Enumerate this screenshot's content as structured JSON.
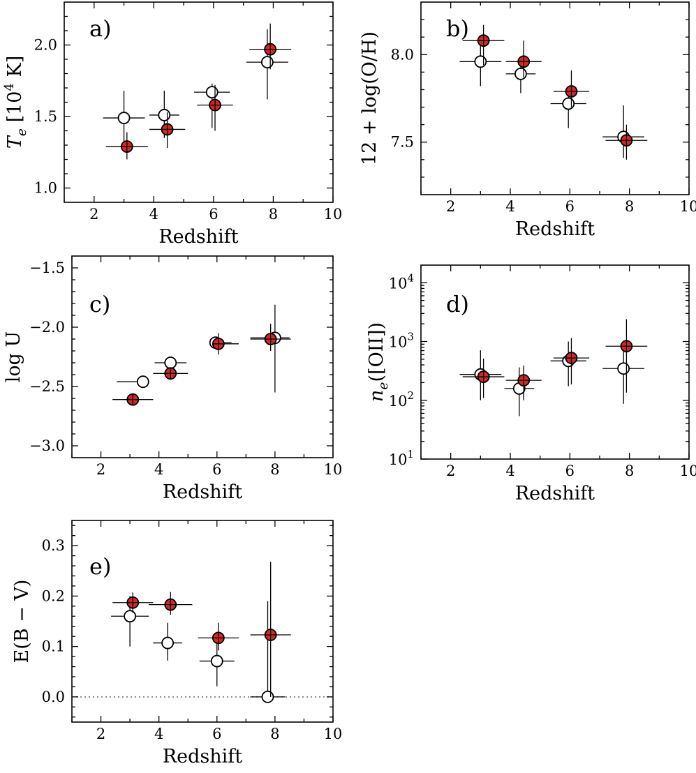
{
  "colors": {
    "filled": "#d62728",
    "open": "#ffffff",
    "axis": "#000000",
    "zero_line": "#888888"
  },
  "chart_data": [
    {
      "type": "scatter",
      "panel_label": "a)",
      "xlabel": "Redshift",
      "ylabel_parts": {
        "sym": "T",
        "sub": "e",
        "pre": " [10",
        "sup": "4",
        "post": " K]"
      },
      "xlim": [
        1,
        10
      ],
      "ylim": [
        0.9,
        2.3
      ],
      "xticks": [
        2,
        4,
        6,
        8,
        10
      ],
      "yticks": [
        1.0,
        1.5,
        2.0
      ],
      "ytick_labels": [
        "1.0",
        "1.5",
        "2.0"
      ],
      "series": [
        {
          "style": "open",
          "points": [
            {
              "x": 3.0,
              "y": 1.49,
              "xerr": [
                0.7,
                0.7
              ],
              "yerr": [
                0.19,
                0.19
              ]
            },
            {
              "x": 4.35,
              "y": 1.51,
              "xerr": [
                0.5,
                0.5
              ],
              "yerr": [
                0.16,
                0.17
              ]
            },
            {
              "x": 5.95,
              "y": 1.67,
              "xerr": [
                0.6,
                0.6
              ],
              "yerr": [
                0.25,
                0.06
              ]
            },
            {
              "x": 7.8,
              "y": 1.88,
              "xerr": [
                0.7,
                0.7
              ],
              "yerr": [
                0.26,
                0.23
              ]
            }
          ]
        },
        {
          "style": "filled",
          "points": [
            {
              "x": 3.1,
              "y": 1.29,
              "xerr": [
                0.7,
                0.7
              ],
              "yerr": [
                0.09,
                0.1
              ]
            },
            {
              "x": 4.45,
              "y": 1.41,
              "xerr": [
                0.6,
                0.6
              ],
              "yerr": [
                0.13,
                0.12
              ]
            },
            {
              "x": 6.05,
              "y": 1.58,
              "xerr": [
                0.6,
                0.6
              ],
              "yerr": [
                0.18,
                0.14
              ]
            },
            {
              "x": 7.9,
              "y": 1.97,
              "xerr": [
                0.7,
                0.7
              ],
              "yerr": [
                0.14,
                0.18
              ]
            }
          ]
        }
      ]
    },
    {
      "type": "scatter",
      "panel_label": "b)",
      "xlabel": "Redshift",
      "ylabel": "12 + log(O/H)",
      "xlim": [
        1,
        10
      ],
      "ylim": [
        7.2,
        8.3
      ],
      "xticks": [
        2,
        4,
        6,
        8,
        10
      ],
      "yticks": [
        7.5,
        8.0
      ],
      "ytick_labels": [
        "7.5",
        "8.0"
      ],
      "series": [
        {
          "style": "open",
          "points": [
            {
              "x": 3.0,
              "y": 7.96,
              "xerr": [
                0.7,
                0.7
              ],
              "yerr": [
                0.14,
                0.1
              ]
            },
            {
              "x": 4.35,
              "y": 7.89,
              "xerr": [
                0.5,
                0.5
              ],
              "yerr": [
                0.11,
                0.07
              ]
            },
            {
              "x": 5.95,
              "y": 7.72,
              "xerr": [
                0.6,
                0.6
              ],
              "yerr": [
                0.14,
                0.08
              ]
            },
            {
              "x": 7.8,
              "y": 7.53,
              "xerr": [
                0.7,
                0.7
              ],
              "yerr": [
                0.12,
                0.18
              ]
            }
          ]
        },
        {
          "style": "filled",
          "points": [
            {
              "x": 3.1,
              "y": 8.08,
              "xerr": [
                0.7,
                0.7
              ],
              "yerr": [
                0.14,
                0.09
              ]
            },
            {
              "x": 4.45,
              "y": 7.96,
              "xerr": [
                0.6,
                0.6
              ],
              "yerr": [
                0.09,
                0.12
              ]
            },
            {
              "x": 6.05,
              "y": 7.79,
              "xerr": [
                0.6,
                0.6
              ],
              "yerr": [
                0.09,
                0.12
              ]
            },
            {
              "x": 7.9,
              "y": 7.51,
              "xerr": [
                0.7,
                0.7
              ],
              "yerr": [
                0.11,
                0.09
              ]
            }
          ]
        }
      ]
    },
    {
      "type": "scatter",
      "panel_label": "c)",
      "xlabel": "Redshift",
      "ylabel": "log U",
      "xlim": [
        1,
        10
      ],
      "ylim": [
        -3.1,
        -1.4
      ],
      "xticks": [
        2,
        4,
        6,
        8,
        10
      ],
      "yticks": [
        -3.0,
        -2.5,
        -2.0,
        -1.5
      ],
      "ytick_labels": [
        "−3.0",
        "−2.5",
        "−2.0",
        "−1.5"
      ],
      "series": [
        {
          "style": "open",
          "points": [
            {
              "x": 3.45,
              "y": -2.46,
              "xerr": [
                0.9,
                0.0
              ],
              "yerr": [
                0.04,
                0.04
              ]
            },
            {
              "x": 4.4,
              "y": -2.3,
              "xerr": [
                0.55,
                0.55
              ],
              "yerr": [
                0.04,
                0.04
              ]
            },
            {
              "x": 5.95,
              "y": -2.13,
              "xerr": [
                0.2,
                0.55
              ],
              "yerr": [
                0.04,
                0.04
              ]
            },
            {
              "x": 8.0,
              "y": -2.09,
              "xerr": [
                0.85,
                0.5
              ],
              "yerr": [
                0.46,
                0.28
              ]
            }
          ]
        },
        {
          "style": "filled",
          "points": [
            {
              "x": 3.1,
              "y": -2.61,
              "xerr": [
                0.7,
                0.7
              ],
              "yerr": [
                0.03,
                0.03
              ]
            },
            {
              "x": 4.4,
              "y": -2.39,
              "xerr": [
                0.6,
                0.6
              ],
              "yerr": [
                0.03,
                0.03
              ]
            },
            {
              "x": 6.05,
              "y": -2.14,
              "xerr": [
                0.2,
                0.7
              ],
              "yerr": [
                0.09,
                0.09
              ]
            },
            {
              "x": 7.85,
              "y": -2.1,
              "xerr": [
                0.7,
                0.7
              ],
              "yerr": [
                0.1,
                0.13
              ]
            }
          ]
        }
      ]
    },
    {
      "type": "scatter",
      "panel_label": "d)",
      "xlabel": "Redshift",
      "ylabel_parts": {
        "sym": "n",
        "sub": "e",
        "post": "([OII])"
      },
      "yscale": "log",
      "xlim": [
        1,
        10
      ],
      "ylim": [
        1,
        4.3
      ],
      "xticks": [
        2,
        4,
        6,
        8,
        10
      ],
      "yticks": [
        1,
        2,
        3,
        4
      ],
      "ytick_labels": [
        "10",
        "10",
        "10",
        "10"
      ],
      "ytick_exps": [
        "1",
        "2",
        "3",
        "4"
      ],
      "series": [
        {
          "style": "open",
          "points": [
            {
              "x": 3.0,
              "y": 2.44,
              "xerr": [
                0.7,
                0.7
              ],
              "yerr": [
                0.44,
                0.41
              ]
            },
            {
              "x": 4.3,
              "y": 2.2,
              "xerr": [
                0.5,
                0.5
              ],
              "yerr": [
                0.47,
                0.36
              ]
            },
            {
              "x": 5.95,
              "y": 2.67,
              "xerr": [
                0.6,
                0.6
              ],
              "yerr": [
                0.43,
                0.33
              ]
            },
            {
              "x": 7.8,
              "y": 2.54,
              "xerr": [
                0.7,
                0.7
              ],
              "yerr": [
                0.6,
                0.39
              ]
            }
          ]
        },
        {
          "style": "filled",
          "points": [
            {
              "x": 3.1,
              "y": 2.4,
              "xerr": [
                0.7,
                0.7
              ],
              "yerr": [
                0.36,
                0.31
              ]
            },
            {
              "x": 4.45,
              "y": 2.34,
              "xerr": [
                0.6,
                0.6
              ],
              "yerr": [
                0.34,
                0.25
              ]
            },
            {
              "x": 6.05,
              "y": 2.72,
              "xerr": [
                0.6,
                0.6
              ],
              "yerr": [
                0.45,
                0.34
              ]
            },
            {
              "x": 7.9,
              "y": 2.92,
              "xerr": [
                0.7,
                0.7
              ],
              "yerr": [
                0.79,
                0.46
              ]
            }
          ]
        }
      ]
    },
    {
      "type": "scatter",
      "panel_label": "e)",
      "xlabel": "Redshift",
      "ylabel": "E(B − V)",
      "xlim": [
        1,
        10
      ],
      "ylim": [
        -0.05,
        0.35
      ],
      "xticks": [
        2,
        4,
        6,
        8,
        10
      ],
      "yticks": [
        0.0,
        0.1,
        0.2,
        0.3
      ],
      "ytick_labels": [
        "0.0",
        "0.1",
        "0.2",
        "0.3"
      ],
      "hline": 0.0,
      "series": [
        {
          "style": "open",
          "points": [
            {
              "x": 3.0,
              "y": 0.16,
              "xerr": [
                0.65,
                0.65
              ],
              "yerr": [
                0.06,
                0.04
              ]
            },
            {
              "x": 4.3,
              "y": 0.107,
              "xerr": [
                0.5,
                0.5
              ],
              "yerr": [
                0.035,
                0.04
              ]
            },
            {
              "x": 6.0,
              "y": 0.071,
              "xerr": [
                0.6,
                0.6
              ],
              "yerr": [
                0.05,
                0.045
              ]
            },
            {
              "x": 7.75,
              "y": 0.0,
              "xerr": [
                0.6,
                0.6
              ],
              "yerr": [
                0.0,
                0.19
              ]
            }
          ]
        },
        {
          "style": "filled",
          "points": [
            {
              "x": 3.1,
              "y": 0.187,
              "xerr": [
                0.7,
                0.7
              ],
              "yerr": [
                0.02,
                0.02
              ]
            },
            {
              "x": 4.4,
              "y": 0.183,
              "xerr": [
                0.75,
                0.75
              ],
              "yerr": [
                0.02,
                0.025
              ]
            },
            {
              "x": 6.05,
              "y": 0.117,
              "xerr": [
                0.7,
                0.7
              ],
              "yerr": [
                0.025,
                0.03
              ]
            },
            {
              "x": 7.85,
              "y": 0.123,
              "xerr": [
                0.7,
                0.7
              ],
              "yerr": [
                0.123,
                0.145
              ]
            }
          ]
        }
      ]
    }
  ]
}
